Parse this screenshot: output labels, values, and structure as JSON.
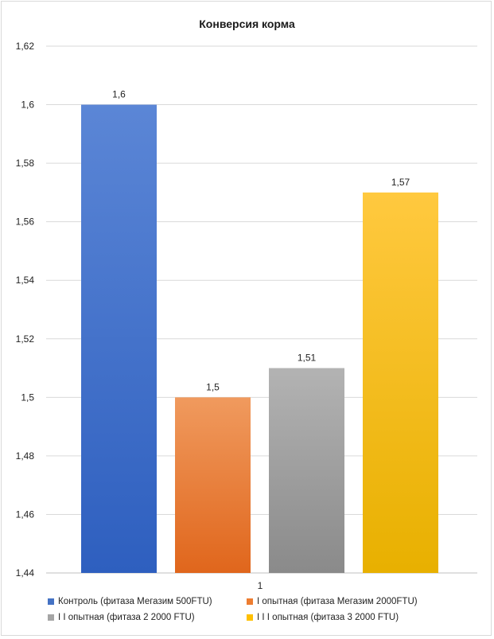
{
  "chart_data": {
    "type": "bar",
    "title": "Конверсия корма",
    "categories": [
      "1"
    ],
    "ylim": [
      1.44,
      1.62
    ],
    "yticks": [
      "1,44",
      "1,46",
      "1,48",
      "1,5",
      "1,52",
      "1,54",
      "1,56",
      "1,58",
      "1,6",
      "1,62"
    ],
    "ytick_values": [
      1.44,
      1.46,
      1.48,
      1.5,
      1.52,
      1.54,
      1.56,
      1.58,
      1.6,
      1.62
    ],
    "grid": true,
    "legend_position": "bottom",
    "series": [
      {
        "name": "Контроль (фитаза Мегазим 500FTU)",
        "values": [
          1.6
        ],
        "label": "1,6",
        "color_top": "#5b86d6",
        "color_bottom": "#2e5fbf"
      },
      {
        "name": "I опытная (фитаза Мегазим 2000FTU)",
        "values": [
          1.5
        ],
        "label": "1,5",
        "color_top": "#f09a5e",
        "color_bottom": "#e0661c"
      },
      {
        "name": "I I опытная (фитаза 2 2000 FTU)",
        "values": [
          1.51
        ],
        "label": "1,51",
        "color_top": "#b3b3b3",
        "color_bottom": "#8a8a8a"
      },
      {
        "name": "I I I опытная (фитаза 3  2000 FTU)",
        "values": [
          1.57
        ],
        "label": "1,57",
        "color_top": "#ffc93f",
        "color_bottom": "#e8b000"
      }
    ],
    "legend_swatch_colors": [
      "#4472c4",
      "#ed7d31",
      "#a5a5a5",
      "#ffc000"
    ]
  }
}
